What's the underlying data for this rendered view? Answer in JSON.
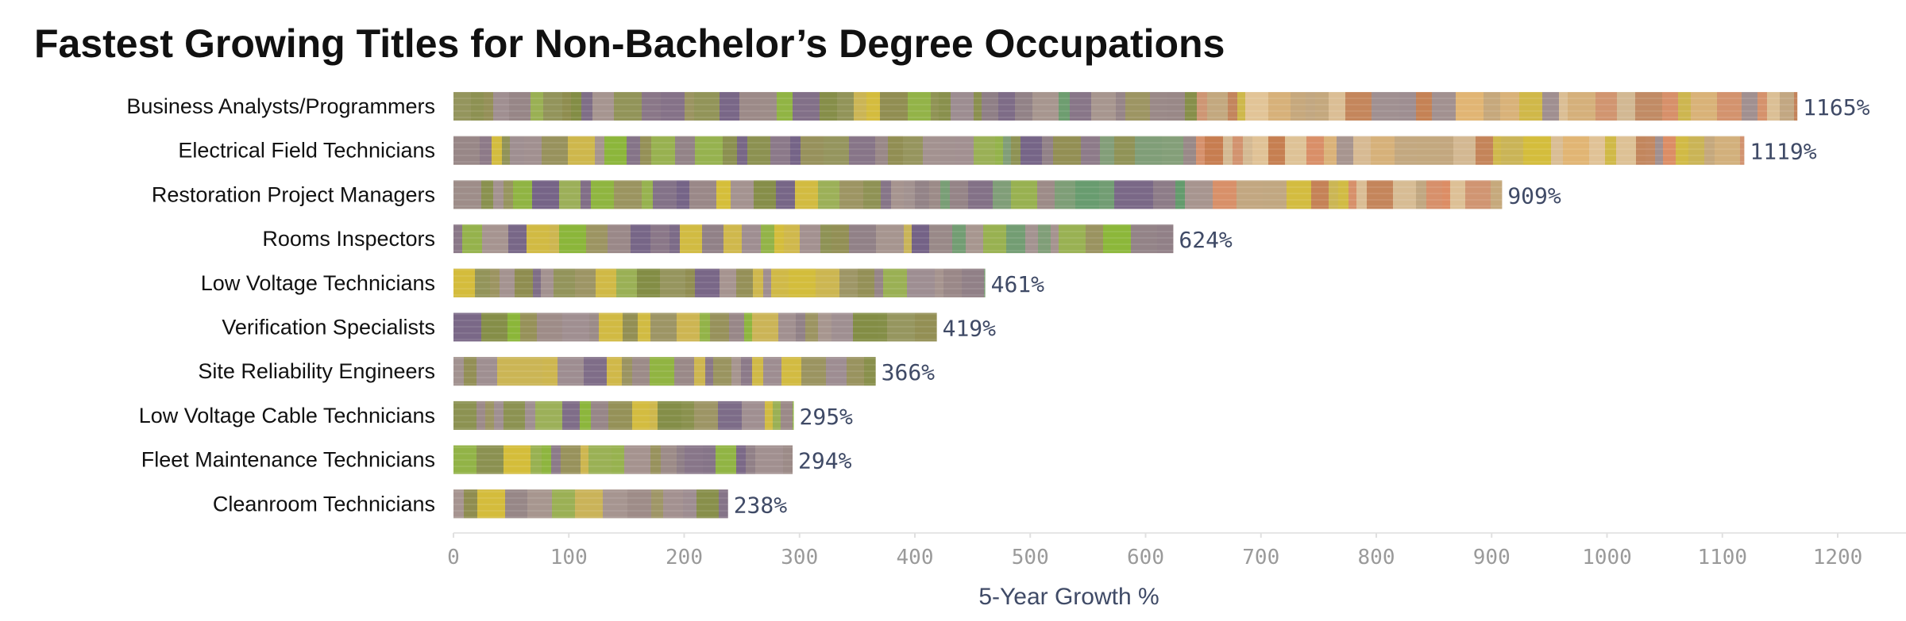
{
  "chart_data": {
    "type": "bar",
    "orientation": "horizontal",
    "title": "Fastest Growing Titles for Non-Bachelor’s Degree Occupations",
    "xlabel": "5-Year Growth %",
    "ylabel": "",
    "xlim": [
      0,
      1200
    ],
    "xticks": [
      0,
      100,
      200,
      300,
      400,
      500,
      600,
      700,
      800,
      900,
      1000,
      1100,
      1200
    ],
    "grid": false,
    "legend": "none",
    "categories": [
      "Business Analysts/Programmers",
      "Electrical Field Technicians",
      "Restoration Project Managers",
      "Rooms Inspectors",
      "Low Voltage Technicians",
      "Verification Specialists",
      "Site Reliability Engineers",
      "Low Voltage Cable Technicians",
      "Fleet Maintenance Technicians",
      "Cleanroom Technicians"
    ],
    "values": [
      1165,
      1119,
      909,
      624,
      461,
      419,
      366,
      295,
      294,
      238
    ],
    "value_labels": [
      "1165%",
      "1119%",
      "909%",
      "624%",
      "461%",
      "419%",
      "366%",
      "295%",
      "294%",
      "238%"
    ],
    "colors": {
      "bar_base": "#b8a58c",
      "segment_palette": [
        "#8a7a86",
        "#9a8a92",
        "#c8a97a",
        "#6b5a86",
        "#7c8a3c",
        "#86b830",
        "#d8c030",
        "#e08a60",
        "#e8c898",
        "#8a8a48",
        "#5a9a6a",
        "#c87848",
        "#e8b870"
      ],
      "value_label": "#3f4a66",
      "tick_label": "#9a9a9a",
      "axis_label": "#3f4a66",
      "title": "#111111"
    }
  }
}
